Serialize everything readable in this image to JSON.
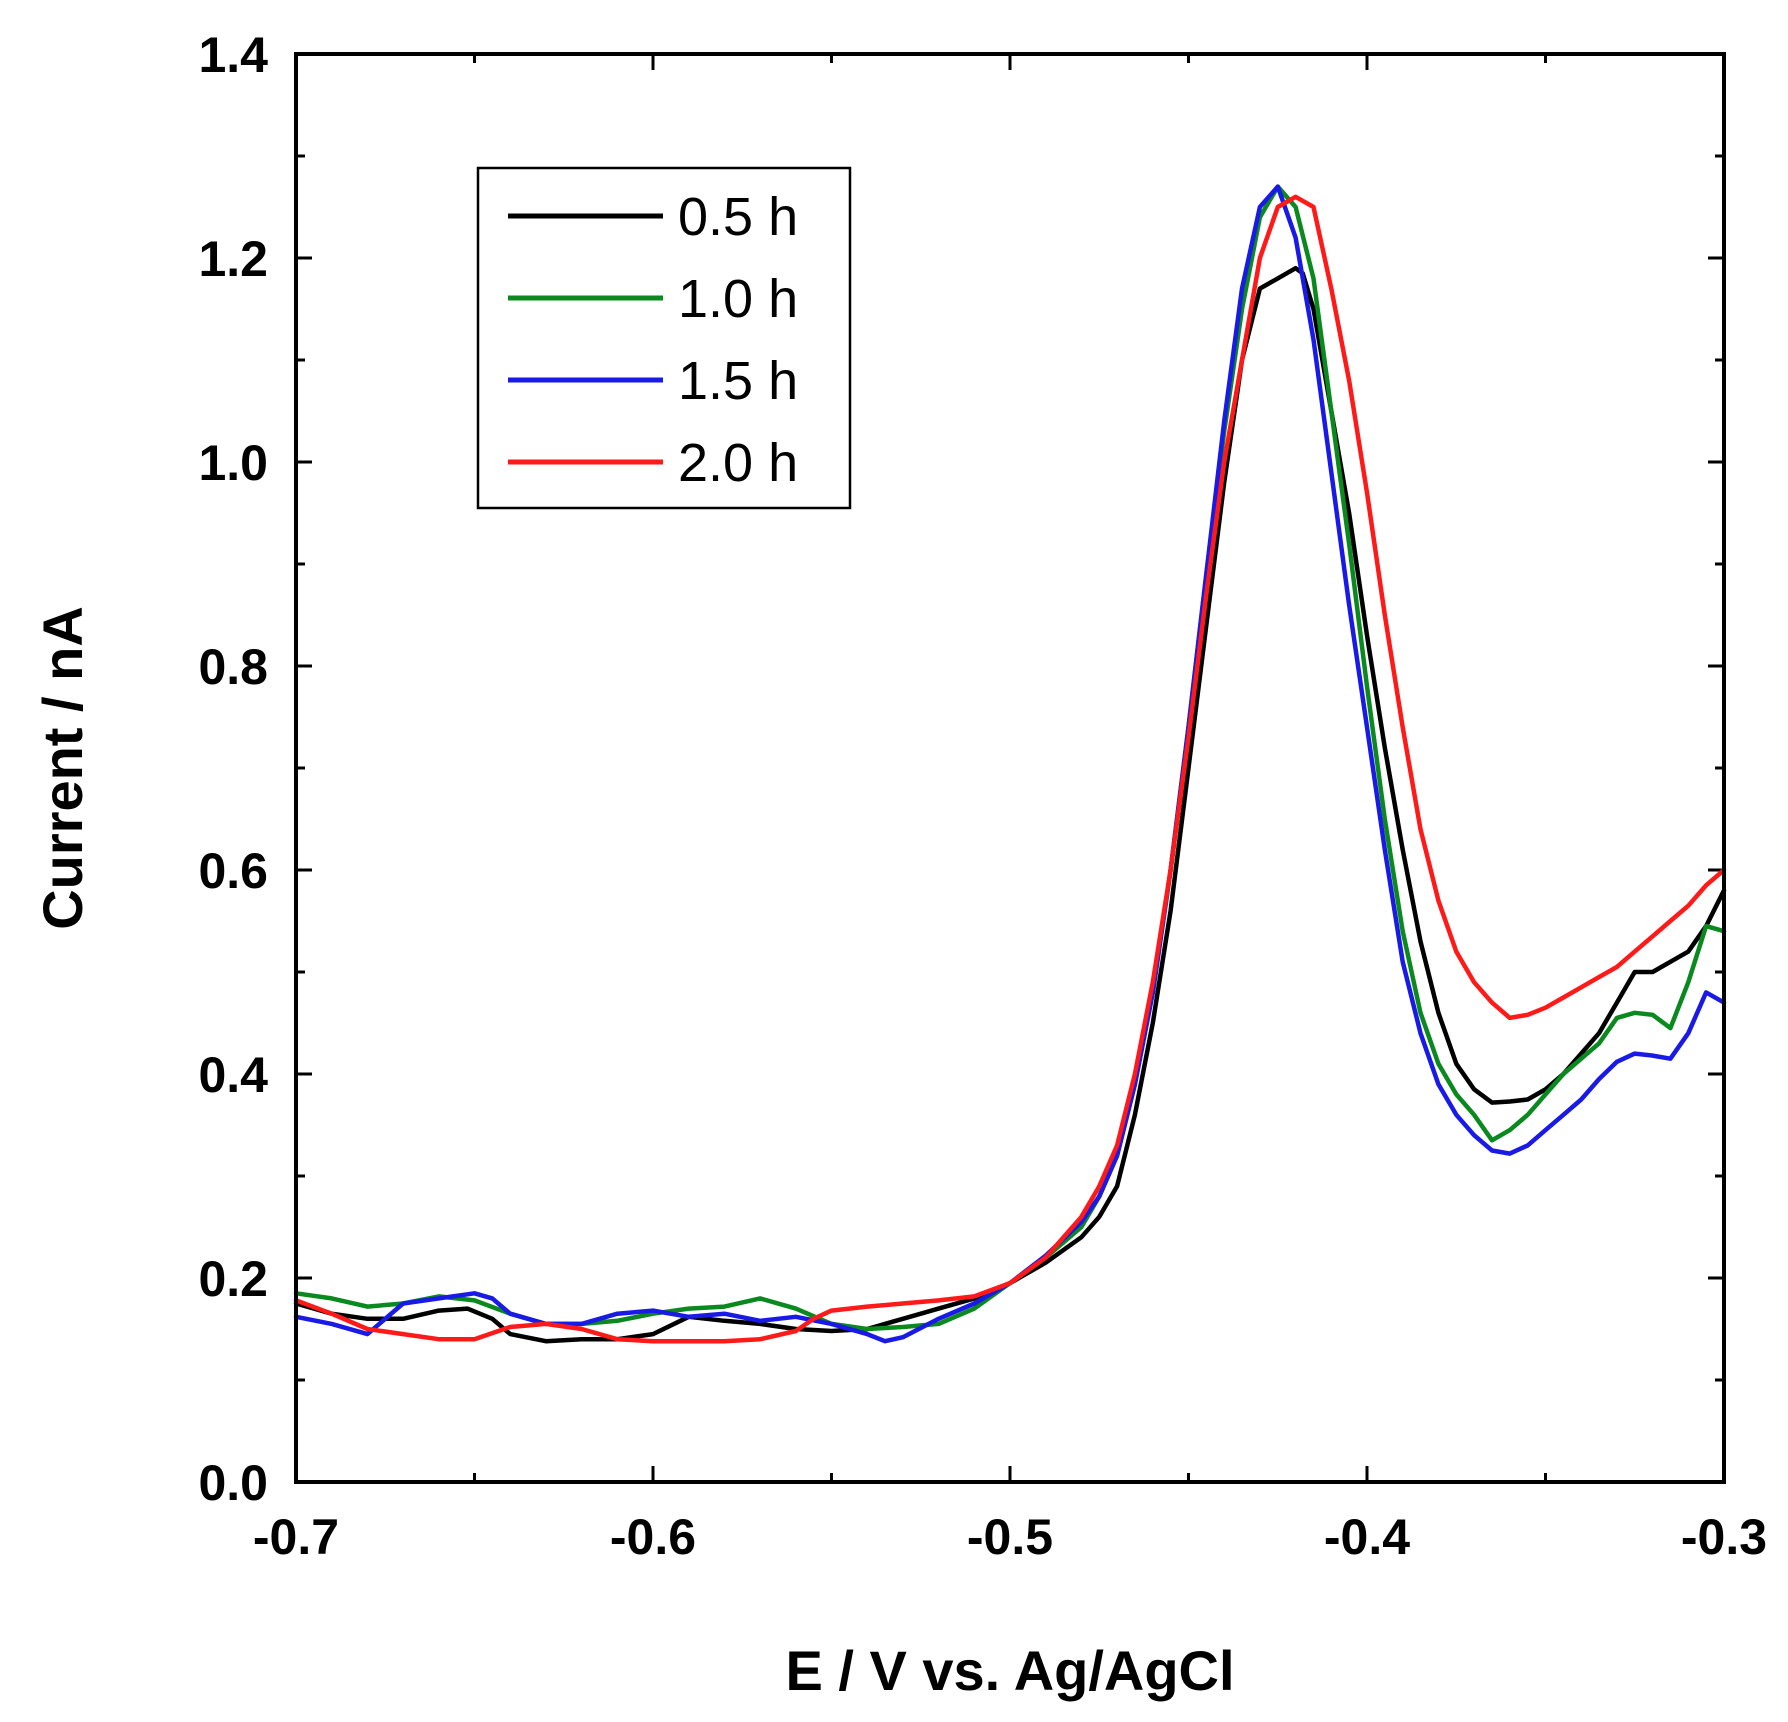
{
  "chart_data": {
    "type": "line",
    "title": "",
    "xlabel": "E / V vs. Ag/AgCl",
    "ylabel": "Current / nA",
    "xlim": [
      -0.7,
      -0.3
    ],
    "ylim": [
      0.0,
      1.4
    ],
    "x_ticks": [
      -0.7,
      -0.6,
      -0.5,
      -0.4,
      -0.3
    ],
    "x_tick_labels": [
      "-0.7",
      "-0.6",
      "-0.5",
      "-0.4",
      "-0.3"
    ],
    "y_ticks": [
      0.0,
      0.2,
      0.4,
      0.6,
      0.8,
      1.0,
      1.2,
      1.4
    ],
    "y_tick_labels": [
      "0.0",
      "0.2",
      "0.4",
      "0.6",
      "0.8",
      "1.0",
      "1.2",
      "1.4"
    ],
    "grid": false,
    "legend_position": "top-left",
    "series": [
      {
        "name": "0.5 h",
        "color": "#000000",
        "x": [
          -0.7,
          -0.69,
          -0.68,
          -0.67,
          -0.66,
          -0.652,
          -0.645,
          -0.64,
          -0.63,
          -0.62,
          -0.61,
          -0.6,
          -0.59,
          -0.58,
          -0.57,
          -0.56,
          -0.55,
          -0.54,
          -0.53,
          -0.52,
          -0.51,
          -0.5,
          -0.49,
          -0.48,
          -0.475,
          -0.47,
          -0.465,
          -0.46,
          -0.455,
          -0.45,
          -0.445,
          -0.44,
          -0.435,
          -0.43,
          -0.425,
          -0.42,
          -0.418,
          -0.415,
          -0.41,
          -0.405,
          -0.4,
          -0.395,
          -0.39,
          -0.385,
          -0.38,
          -0.375,
          -0.37,
          -0.365,
          -0.36,
          -0.355,
          -0.35,
          -0.345,
          -0.34,
          -0.335,
          -0.33,
          -0.325,
          -0.32,
          -0.315,
          -0.31,
          -0.305,
          -0.3
        ],
        "y": [
          0.175,
          0.165,
          0.16,
          0.16,
          0.168,
          0.17,
          0.16,
          0.145,
          0.138,
          0.14,
          0.14,
          0.145,
          0.162,
          0.158,
          0.155,
          0.15,
          0.148,
          0.15,
          0.16,
          0.17,
          0.18,
          0.195,
          0.215,
          0.24,
          0.26,
          0.29,
          0.36,
          0.45,
          0.56,
          0.7,
          0.84,
          0.98,
          1.1,
          1.17,
          1.18,
          1.19,
          1.185,
          1.15,
          1.05,
          0.95,
          0.83,
          0.72,
          0.62,
          0.53,
          0.46,
          0.41,
          0.385,
          0.372,
          0.373,
          0.375,
          0.385,
          0.4,
          0.42,
          0.44,
          0.47,
          0.5,
          0.5,
          0.51,
          0.52,
          0.545,
          0.58
        ]
      },
      {
        "name": "1.0 h",
        "color": "#0a8a1e",
        "x": [
          -0.7,
          -0.69,
          -0.68,
          -0.67,
          -0.66,
          -0.65,
          -0.64,
          -0.63,
          -0.62,
          -0.61,
          -0.6,
          -0.59,
          -0.58,
          -0.57,
          -0.56,
          -0.55,
          -0.54,
          -0.53,
          -0.52,
          -0.51,
          -0.5,
          -0.49,
          -0.48,
          -0.475,
          -0.47,
          -0.465,
          -0.46,
          -0.455,
          -0.45,
          -0.445,
          -0.44,
          -0.435,
          -0.43,
          -0.425,
          -0.42,
          -0.415,
          -0.41,
          -0.405,
          -0.4,
          -0.395,
          -0.39,
          -0.385,
          -0.38,
          -0.375,
          -0.37,
          -0.365,
          -0.36,
          -0.355,
          -0.35,
          -0.345,
          -0.34,
          -0.335,
          -0.33,
          -0.325,
          -0.32,
          -0.315,
          -0.31,
          -0.305,
          -0.3
        ],
        "y": [
          0.185,
          0.18,
          0.172,
          0.175,
          0.182,
          0.178,
          0.165,
          0.155,
          0.155,
          0.158,
          0.165,
          0.17,
          0.172,
          0.18,
          0.17,
          0.155,
          0.15,
          0.152,
          0.155,
          0.17,
          0.195,
          0.22,
          0.25,
          0.28,
          0.32,
          0.39,
          0.48,
          0.6,
          0.74,
          0.89,
          1.03,
          1.15,
          1.24,
          1.27,
          1.25,
          1.18,
          1.05,
          0.92,
          0.78,
          0.65,
          0.54,
          0.46,
          0.41,
          0.38,
          0.36,
          0.335,
          0.345,
          0.36,
          0.38,
          0.4,
          0.415,
          0.43,
          0.455,
          0.46,
          0.458,
          0.445,
          0.49,
          0.545,
          0.54
        ]
      },
      {
        "name": "1.5 h",
        "color": "#1a1ae6",
        "x": [
          -0.7,
          -0.69,
          -0.68,
          -0.675,
          -0.67,
          -0.66,
          -0.65,
          -0.645,
          -0.64,
          -0.63,
          -0.62,
          -0.61,
          -0.6,
          -0.59,
          -0.58,
          -0.57,
          -0.56,
          -0.55,
          -0.54,
          -0.535,
          -0.53,
          -0.52,
          -0.51,
          -0.5,
          -0.49,
          -0.48,
          -0.475,
          -0.47,
          -0.465,
          -0.46,
          -0.455,
          -0.45,
          -0.445,
          -0.44,
          -0.435,
          -0.43,
          -0.425,
          -0.42,
          -0.415,
          -0.41,
          -0.405,
          -0.4,
          -0.395,
          -0.39,
          -0.385,
          -0.38,
          -0.375,
          -0.37,
          -0.365,
          -0.36,
          -0.355,
          -0.35,
          -0.345,
          -0.34,
          -0.335,
          -0.33,
          -0.325,
          -0.32,
          -0.315,
          -0.31,
          -0.305,
          -0.3
        ],
        "y": [
          0.162,
          0.155,
          0.145,
          0.16,
          0.175,
          0.18,
          0.185,
          0.18,
          0.165,
          0.155,
          0.155,
          0.165,
          0.168,
          0.162,
          0.165,
          0.158,
          0.162,
          0.155,
          0.145,
          0.138,
          0.142,
          0.16,
          0.175,
          0.195,
          0.222,
          0.255,
          0.28,
          0.32,
          0.39,
          0.48,
          0.6,
          0.74,
          0.89,
          1.04,
          1.17,
          1.25,
          1.27,
          1.22,
          1.12,
          0.99,
          0.86,
          0.74,
          0.62,
          0.51,
          0.44,
          0.39,
          0.36,
          0.34,
          0.325,
          0.322,
          0.33,
          0.345,
          0.36,
          0.375,
          0.395,
          0.412,
          0.42,
          0.418,
          0.415,
          0.44,
          0.48,
          0.47
        ]
      },
      {
        "name": "2.0 h",
        "color": "#ff1a1a",
        "x": [
          -0.7,
          -0.69,
          -0.68,
          -0.67,
          -0.66,
          -0.65,
          -0.64,
          -0.63,
          -0.62,
          -0.61,
          -0.6,
          -0.59,
          -0.58,
          -0.57,
          -0.56,
          -0.555,
          -0.55,
          -0.54,
          -0.53,
          -0.52,
          -0.51,
          -0.5,
          -0.49,
          -0.48,
          -0.475,
          -0.47,
          -0.465,
          -0.46,
          -0.455,
          -0.45,
          -0.445,
          -0.44,
          -0.435,
          -0.43,
          -0.425,
          -0.42,
          -0.415,
          -0.41,
          -0.405,
          -0.4,
          -0.395,
          -0.39,
          -0.385,
          -0.38,
          -0.375,
          -0.37,
          -0.365,
          -0.36,
          -0.355,
          -0.35,
          -0.345,
          -0.34,
          -0.335,
          -0.33,
          -0.325,
          -0.32,
          -0.315,
          -0.31,
          -0.305,
          -0.3
        ],
        "y": [
          0.178,
          0.165,
          0.15,
          0.145,
          0.14,
          0.14,
          0.152,
          0.155,
          0.15,
          0.14,
          0.138,
          0.138,
          0.138,
          0.14,
          0.148,
          0.16,
          0.168,
          0.172,
          0.175,
          0.178,
          0.182,
          0.195,
          0.22,
          0.26,
          0.29,
          0.33,
          0.4,
          0.49,
          0.6,
          0.73,
          0.87,
          1.0,
          1.1,
          1.2,
          1.25,
          1.26,
          1.25,
          1.17,
          1.08,
          0.97,
          0.85,
          0.74,
          0.64,
          0.57,
          0.52,
          0.49,
          0.47,
          0.455,
          0.458,
          0.465,
          0.475,
          0.485,
          0.495,
          0.505,
          0.52,
          0.535,
          0.55,
          0.565,
          0.585,
          0.6
        ]
      }
    ]
  }
}
